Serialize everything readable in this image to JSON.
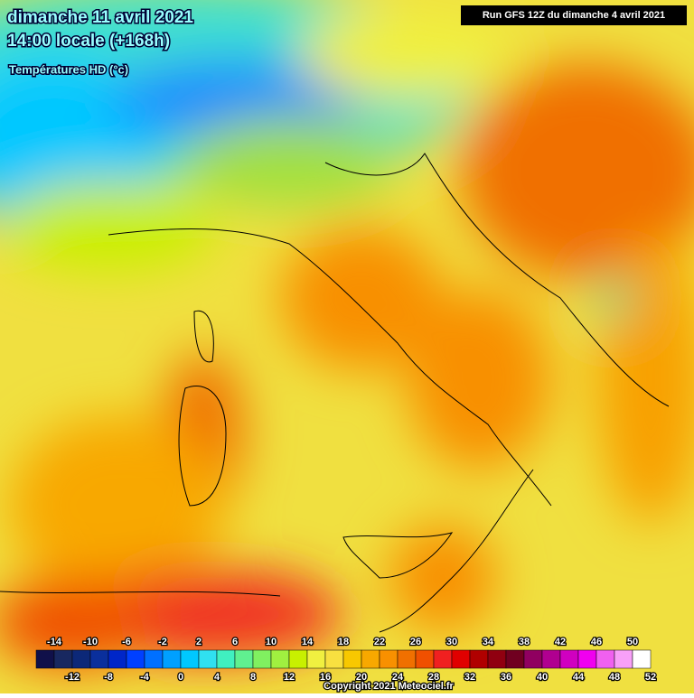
{
  "header": {
    "date": "dimanche 11 avril 2021",
    "time": "14:00 locale (+168h)",
    "field": "Températures HD (°c)",
    "run": "Run GFS 12Z du dimanche 4 avril 2021"
  },
  "legend": {
    "colors": [
      "#10104a",
      "#182860",
      "#0c2878",
      "#0a2f9c",
      "#0026c8",
      "#0040ff",
      "#0070ff",
      "#00a0ff",
      "#00c8ff",
      "#30e0f0",
      "#40f0c0",
      "#60f090",
      "#80f060",
      "#a0f040",
      "#c8f000",
      "#f0f040",
      "#f8e040",
      "#f8c800",
      "#f8a800",
      "#f89000",
      "#f07000",
      "#f05000",
      "#f02020",
      "#e00000",
      "#b00000",
      "#900010",
      "#700020",
      "#900060",
      "#b00090",
      "#d000c0",
      "#f000f0",
      "#f060f0",
      "#f8a0f8",
      "#ffffff"
    ],
    "ticks": [
      -14,
      -12,
      -10,
      -8,
      -6,
      -4,
      -2,
      0,
      2,
      4,
      6,
      8,
      10,
      12,
      14,
      16,
      18,
      20,
      22,
      24,
      26,
      28,
      30,
      32,
      34,
      36,
      38,
      40,
      42,
      44,
      46,
      48,
      50,
      52
    ]
  },
  "footer": {
    "copyright": "Copyright 2021 Meteociel.fr"
  }
}
